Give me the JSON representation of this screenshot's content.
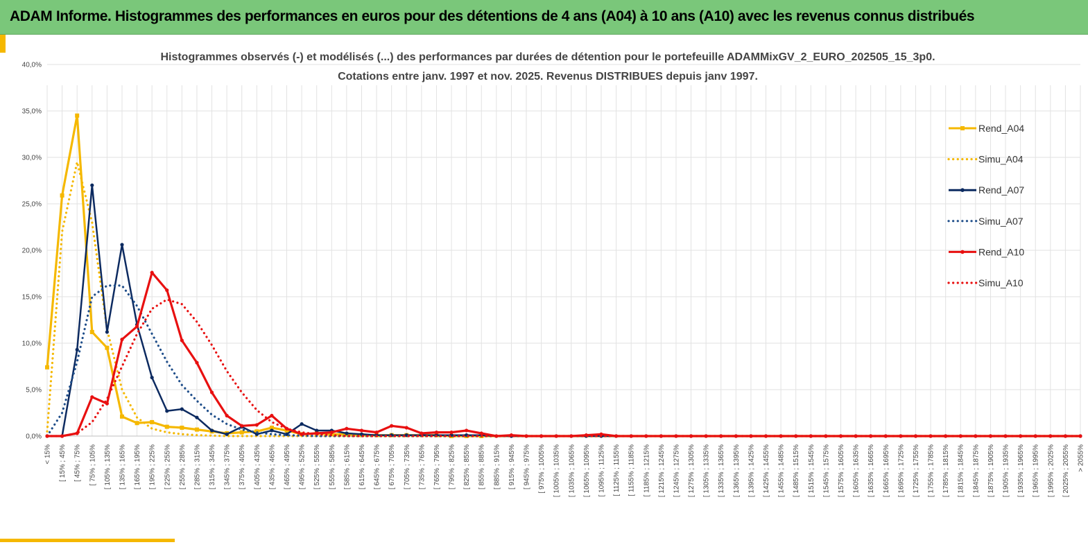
{
  "header": {
    "title": "ADAM Informe. Histogrammes des performances en euros pour des détentions de 4 ans (A04) à 10 ans (A10) avec les revenus connus distribués"
  },
  "chart_data": {
    "type": "line",
    "title_lines": [
      "Histogrammes observés (-) et modélisés (...) des performances par durées de détention pour le portefeuille ADAMMixGV_2_EURO_202505_15_3p0.",
      "Cotations entre janv. 1997 et nov. 2025. Revenus DISTRIBUES depuis janv 1997."
    ],
    "ylim": [
      0,
      40
    ],
    "y_ticks": [
      "0,0%",
      "5,0%",
      "10,0%",
      "15,0%",
      "20,0%",
      "25,0%",
      "30,0%",
      "35,0%",
      "40,0%"
    ],
    "grid": true,
    "legend_position": "right",
    "categories": [
      "< 15%",
      "[ 15% ; 45%",
      "[ 45% ; 75%",
      "[ 75% ; 105%",
      "[ 105% ; 135%",
      "[ 135% ; 165%",
      "[ 165% ; 195%",
      "[ 195% ; 225%",
      "[ 225% ; 255%",
      "[ 255% ; 285%",
      "[ 285% ; 315%",
      "[ 315% ; 345%",
      "[ 345% ; 375%",
      "[ 375% ; 405%",
      "[ 405% ; 435%",
      "[ 435% ; 465%",
      "[ 465% ; 495%",
      "[ 495% ; 525%",
      "[ 525% ; 555%",
      "[ 555% ; 585%",
      "[ 585% ; 615%",
      "[ 615% ; 645%",
      "[ 645% ; 675%",
      "[ 675% ; 705%",
      "[ 705% ; 735%",
      "[ 735% ; 765%",
      "[ 765% ; 795%",
      "[ 795% ; 825%",
      "[ 825% ; 855%",
      "[ 855% ; 885%",
      "[ 885% ; 915%",
      "[ 915% ; 945%",
      "[ 945% ; 975%",
      "[ 975% ; 1005%",
      "[ 1005% ; 1035%",
      "[ 1035% ; 1065%",
      "[ 1065% ; 1095%",
      "[ 1095% ; 1125%",
      "[ 1125% ; 1155%",
      "[ 1155% ; 1185%",
      "[ 1185% ; 1215%",
      "[ 1215% ; 1245%",
      "[ 1245% ; 1275%",
      "[ 1275% ; 1305%",
      "[ 1305% ; 1335%",
      "[ 1335% ; 1365%",
      "[ 1365% ; 1395%",
      "[ 1395% ; 1425%",
      "[ 1425% ; 1455%",
      "[ 1455% ; 1485%",
      "[ 1485% ; 1515%",
      "[ 1515% ; 1545%",
      "[ 1545% ; 1575%",
      "[ 1575% ; 1605%",
      "[ 1605% ; 1635%",
      "[ 1635% ; 1665%",
      "[ 1665% ; 1695%",
      "[ 1695% ; 1725%",
      "[ 1725% ; 1755%",
      "[ 1755% ; 1785%",
      "[ 1785% ; 1815%",
      "[ 1815% ; 1845%",
      "[ 1845% ; 1875%",
      "[ 1875% ; 1905%",
      "[ 1905% ; 1935%",
      "[ 1935% ; 1965%",
      "[ 1965% ; 1995%",
      "[ 1995% ; 2025%",
      "[ 2025% ; 2055%",
      "> 2055%"
    ],
    "series": [
      {
        "name": "Rend_A04",
        "color": "#f5b800",
        "style": "solid",
        "marker": "square",
        "values": [
          7.4,
          25.9,
          34.5,
          11.2,
          9.5,
          2.1,
          1.4,
          1.5,
          1.0,
          0.9,
          0.7,
          0.5,
          0.3,
          0.4,
          0.5,
          0.9,
          0.6,
          0.2,
          0.3,
          0.2,
          0.2,
          0.1,
          0.1,
          0.1,
          0.1,
          0.1,
          0.1,
          0,
          0,
          0,
          0,
          0,
          0,
          0,
          0,
          0,
          0,
          0,
          0,
          0,
          0,
          0,
          0,
          0,
          0,
          0,
          0,
          0,
          0,
          0,
          0,
          0,
          0,
          0,
          0,
          0,
          0,
          0,
          0,
          0,
          0,
          0,
          0,
          0,
          0,
          0,
          0,
          0,
          0,
          0
        ]
      },
      {
        "name": "Simu_A04",
        "color": "#f5b800",
        "style": "dotted",
        "marker": "none",
        "values": [
          0.5,
          22.0,
          29.5,
          23.0,
          11.5,
          5.0,
          2.0,
          0.8,
          0.4,
          0.2,
          0.1,
          0.05,
          0,
          0,
          0,
          0,
          0,
          0,
          0,
          0,
          0,
          0,
          0,
          0,
          0,
          0,
          0,
          0,
          0,
          0,
          0,
          0,
          0,
          0,
          0,
          0,
          0,
          0,
          0,
          0,
          0,
          0,
          0,
          0,
          0,
          0,
          0,
          0,
          0,
          0,
          0,
          0,
          0,
          0,
          0,
          0,
          0,
          0,
          0,
          0,
          0,
          0,
          0,
          0,
          0,
          0,
          0,
          0,
          0,
          0
        ]
      },
      {
        "name": "Rend_A07",
        "color": "#0c2a60",
        "style": "solid",
        "marker": "circle",
        "values": [
          0,
          0,
          9.3,
          27.0,
          11.2,
          20.6,
          12.0,
          6.3,
          2.7,
          2.9,
          2.0,
          0.6,
          0.2,
          1.0,
          0.2,
          0.6,
          0.2,
          1.3,
          0.6,
          0.6,
          0.3,
          0.2,
          0.1,
          0.1,
          0.1,
          0.1,
          0.1,
          0.1,
          0.1,
          0.1,
          0,
          0,
          0,
          0,
          0,
          0,
          0,
          0,
          0,
          0,
          0,
          0,
          0,
          0,
          0,
          0,
          0,
          0,
          0,
          0,
          0,
          0,
          0,
          0,
          0,
          0,
          0,
          0,
          0,
          0,
          0,
          0,
          0,
          0,
          0,
          0,
          0,
          0,
          0,
          0
        ]
      },
      {
        "name": "Simu_A07",
        "color": "#1f4e8a",
        "style": "dotted",
        "marker": "none",
        "values": [
          0,
          2.5,
          8.0,
          15.0,
          16.2,
          16.2,
          14.0,
          11.0,
          8.0,
          5.5,
          3.8,
          2.3,
          1.3,
          0.7,
          0.4,
          0.2,
          0.1,
          0.05,
          0,
          0,
          0,
          0,
          0,
          0,
          0,
          0,
          0,
          0,
          0,
          0,
          0,
          0,
          0,
          0,
          0,
          0,
          0,
          0,
          0,
          0,
          0,
          0,
          0,
          0,
          0,
          0,
          0,
          0,
          0,
          0,
          0,
          0,
          0,
          0,
          0,
          0,
          0,
          0,
          0,
          0,
          0,
          0,
          0,
          0,
          0,
          0,
          0,
          0,
          0,
          0
        ]
      },
      {
        "name": "Rend_A10",
        "color": "#e81010",
        "style": "solid",
        "marker": "circle",
        "values": [
          0,
          0,
          0.3,
          4.2,
          3.5,
          10.4,
          11.8,
          17.6,
          15.7,
          10.3,
          7.9,
          4.7,
          2.2,
          1.1,
          1.2,
          2.2,
          0.8,
          0.2,
          0.3,
          0.4,
          0.8,
          0.6,
          0.4,
          1.1,
          0.9,
          0.3,
          0.4,
          0.4,
          0.6,
          0.3,
          0,
          0.1,
          0,
          0,
          0,
          0,
          0.1,
          0.2,
          0,
          0,
          0,
          0,
          0,
          0,
          0,
          0,
          0,
          0,
          0,
          0,
          0,
          0,
          0,
          0,
          0,
          0,
          0,
          0,
          0,
          0,
          0,
          0,
          0,
          0,
          0,
          0,
          0,
          0,
          0,
          0
        ]
      },
      {
        "name": "Simu_A10",
        "color": "#e81010",
        "style": "dotted",
        "marker": "none",
        "values": [
          0,
          0,
          0.3,
          1.5,
          4.0,
          7.5,
          11.0,
          13.7,
          14.7,
          14.2,
          12.3,
          9.8,
          7.0,
          4.7,
          2.8,
          1.5,
          0.8,
          0.4,
          0.2,
          0.1,
          0,
          0,
          0,
          0,
          0,
          0,
          0,
          0,
          0,
          0,
          0,
          0,
          0,
          0,
          0,
          0,
          0,
          0,
          0,
          0,
          0,
          0,
          0,
          0,
          0,
          0,
          0,
          0,
          0,
          0,
          0,
          0,
          0,
          0,
          0,
          0,
          0,
          0,
          0,
          0,
          0,
          0,
          0,
          0,
          0,
          0,
          0,
          0,
          0,
          0
        ]
      }
    ]
  }
}
